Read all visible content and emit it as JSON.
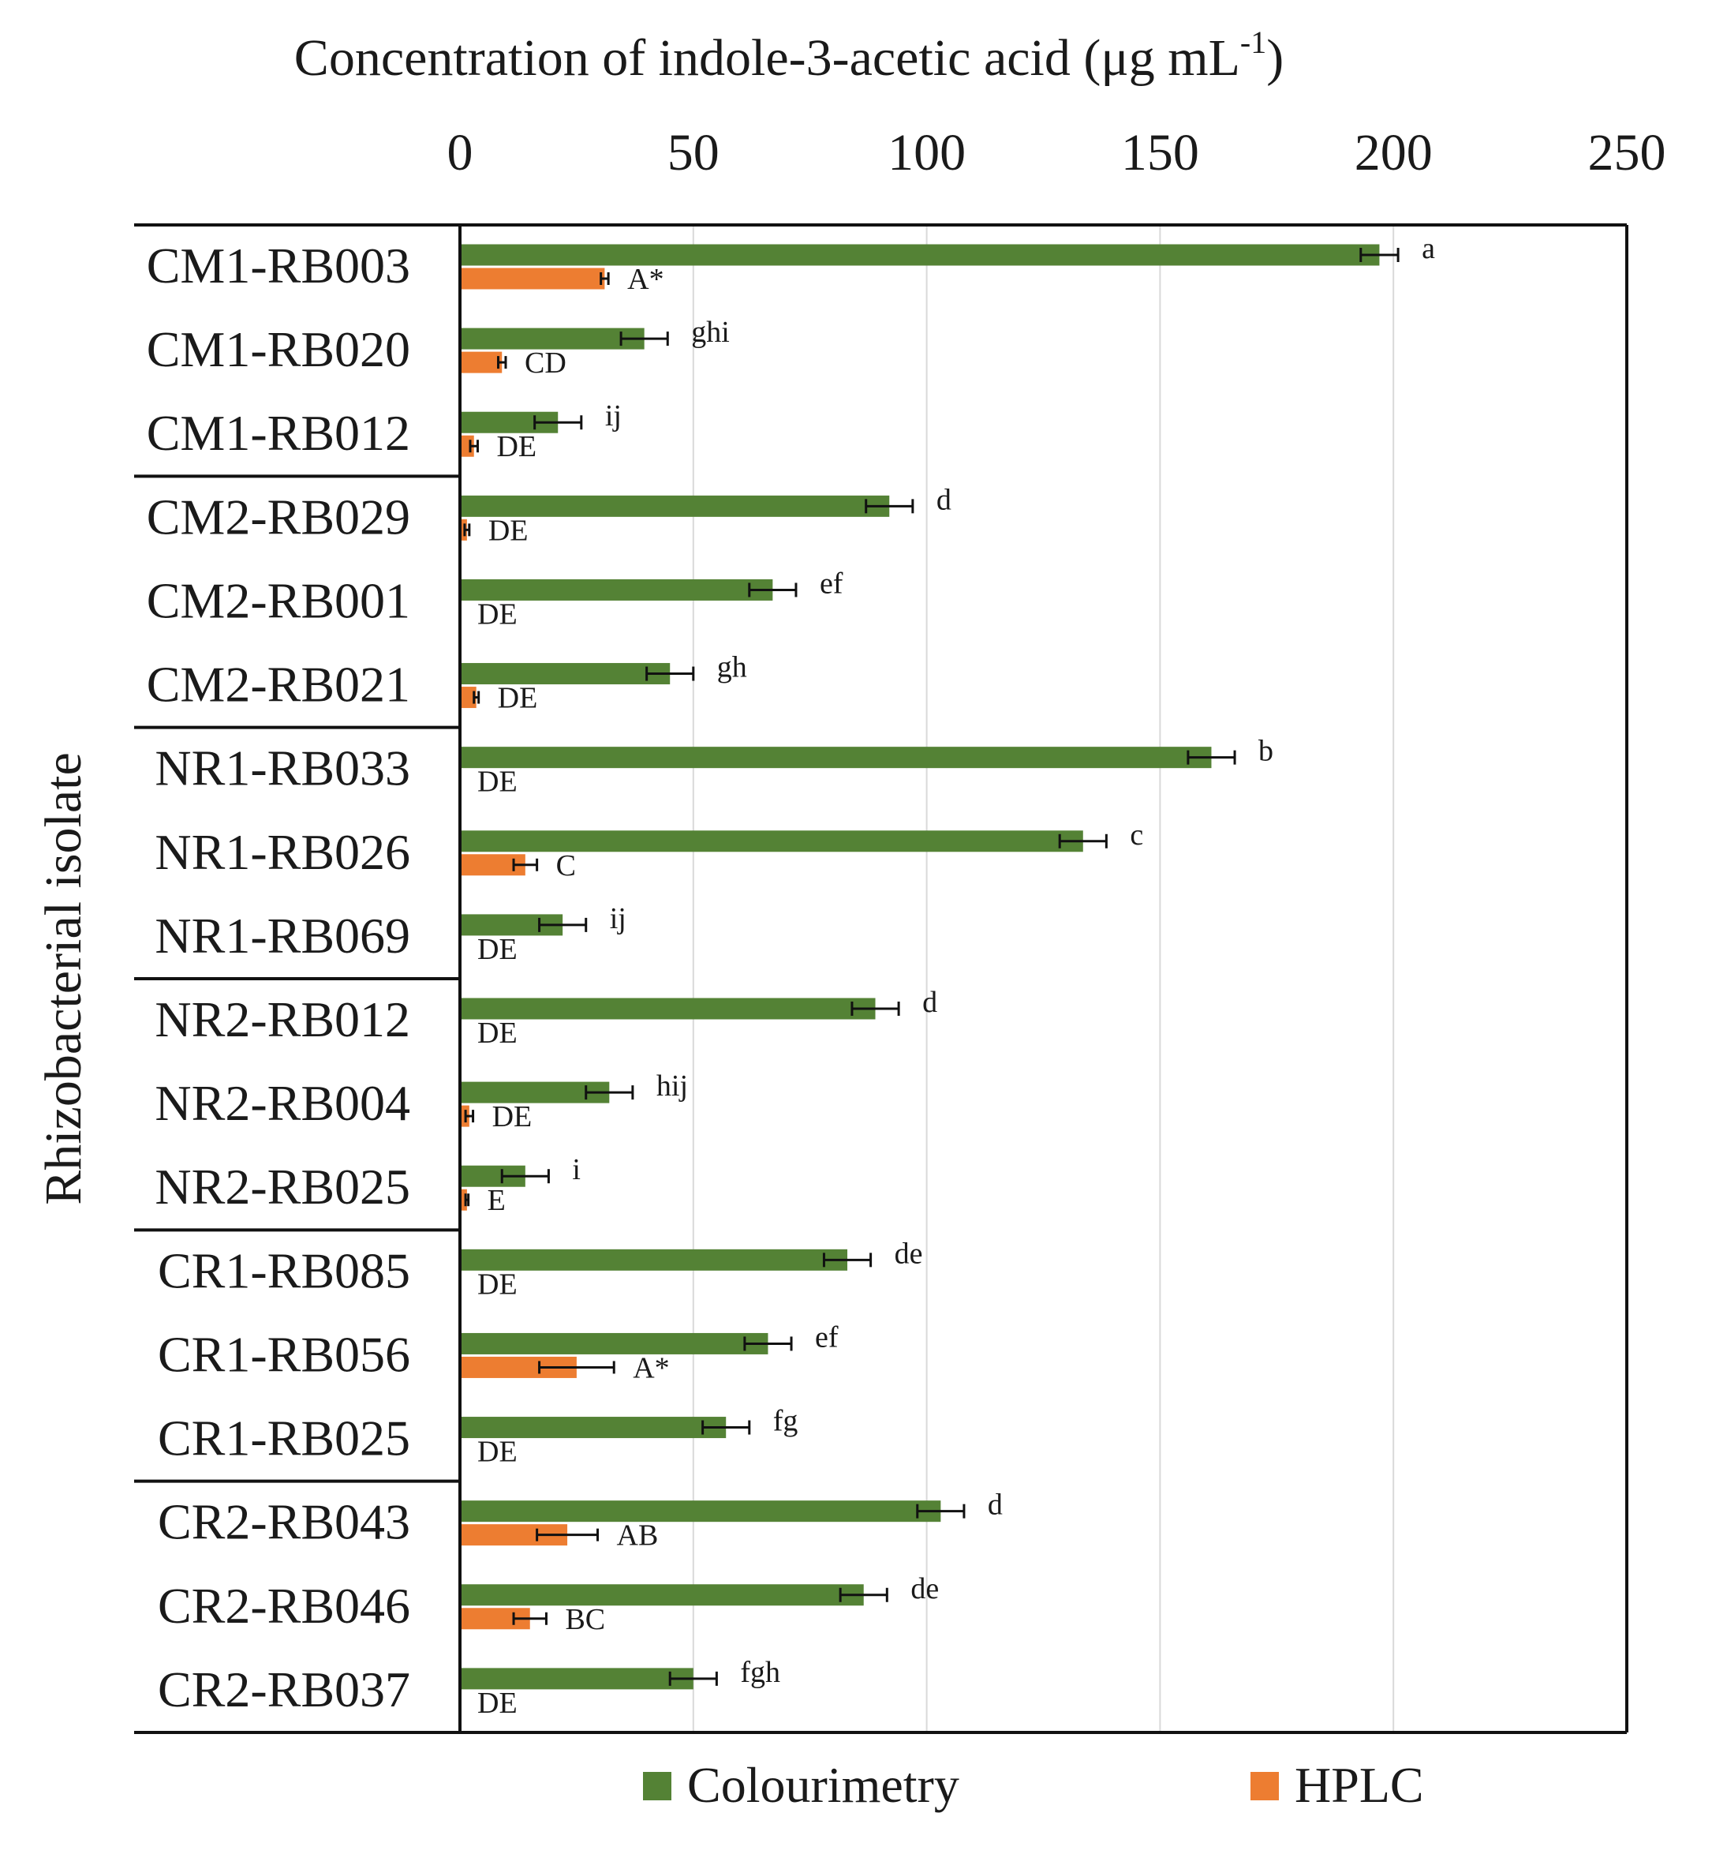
{
  "chart_data": {
    "type": "bar",
    "orientation": "horizontal",
    "title": "",
    "xlabel": "Concentration of indole-3-acetic acid (μg mL",
    "xlabel_superscript": "-1",
    "xlabel_suffix": ")",
    "ylabel": "Rhizobacterial isolate",
    "xlim": [
      0,
      250
    ],
    "xticks": [
      0,
      50,
      100,
      150,
      200,
      250
    ],
    "xaxis_position": "top",
    "grid": "vertical",
    "legend_position": "bottom",
    "categories": [
      "CM1-RB003",
      "CM1-RB020",
      "CM1-RB012",
      "CM2-RB029",
      "CM2-RB001",
      "CM2-RB021",
      "NR1-RB033",
      "NR1-RB026",
      "NR1-RB069",
      "NR2-RB012",
      "NR2-RB004",
      "NR2-RB025",
      "CR1-RB085",
      "CR1-RB056",
      "CR1-RB025",
      "CR2-RB043",
      "CR2-RB046",
      "CR2-RB037"
    ],
    "group_boundaries_after_index": [
      2,
      5,
      8,
      11,
      14
    ],
    "series": [
      {
        "name": "Colourimetry",
        "color": "#548235",
        "values": [
          197,
          39.5,
          21,
          92,
          67,
          45,
          161,
          133.5,
          22,
          89,
          32,
          14,
          83,
          66,
          57,
          103,
          86.5,
          50
        ],
        "errors": [
          4,
          5,
          5,
          5,
          5,
          5,
          5,
          5,
          5,
          5,
          5,
          5,
          5,
          5,
          5,
          5,
          5,
          5
        ],
        "labels": [
          "a",
          "ghi",
          "ij",
          "d",
          "ef",
          "gh",
          "b",
          "c",
          "ij",
          "d",
          "hij",
          "i",
          "de",
          "ef",
          "fg",
          "d",
          "de",
          "fgh"
        ]
      },
      {
        "name": "HPLC",
        "color": "#ED7D31",
        "values": [
          31,
          9,
          3,
          1.5,
          0,
          3.5,
          0,
          14,
          0,
          0,
          2,
          1.5,
          0,
          25,
          0,
          23,
          15,
          0
        ],
        "errors": [
          0.8,
          0.8,
          0.8,
          0.5,
          0,
          0.5,
          0,
          2.5,
          0,
          0,
          0.8,
          0.3,
          0,
          8,
          0,
          6.5,
          3.5,
          0
        ],
        "labels": [
          "A*",
          "CD",
          "DE",
          "DE",
          "DE",
          "DE",
          "DE",
          "C",
          "DE",
          "DE",
          "DE",
          "E",
          "DE",
          "A*",
          "DE",
          "AB",
          "BC",
          "DE"
        ]
      }
    ]
  }
}
